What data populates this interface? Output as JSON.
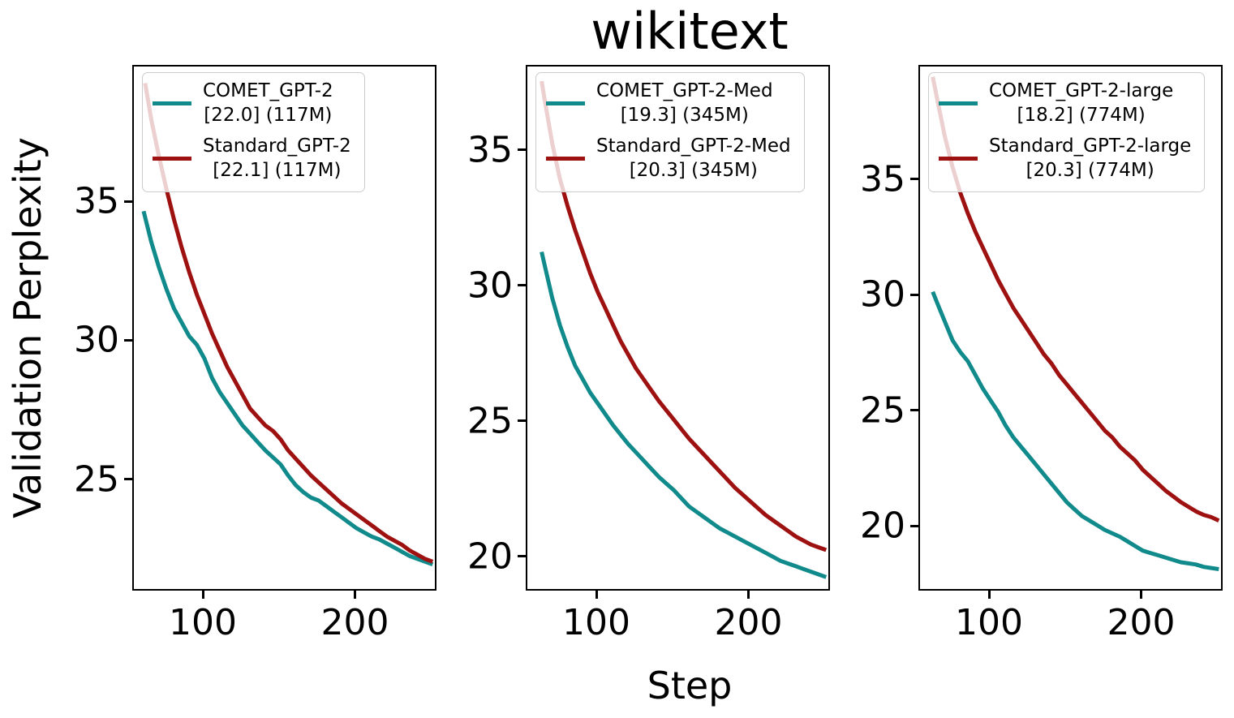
{
  "figure": {
    "title": "wikitext",
    "xlabel": "Step",
    "ylabel": "Validation Perplexity"
  },
  "colors": {
    "comet": "#118a8c",
    "standard": "#9e1111",
    "spine": "#000000",
    "legend_border": "#cccccc"
  },
  "chart_data": [
    {
      "type": "line",
      "title": "",
      "xlabel": "Step",
      "ylabel": "Validation Perplexity",
      "xlim": [
        53.6,
        253.6
      ],
      "ylim": [
        21.0,
        39.9
      ],
      "xticks": [
        100,
        200
      ],
      "yticks": [
        25,
        30,
        35
      ],
      "grid": false,
      "legend_position": "upper-left",
      "series": [
        {
          "name": "COMET_GPT-2",
          "label_lines": [
            "COMET_GPT-2",
            "[22.0] (117M)"
          ],
          "final_perplexity": 22.0,
          "params": "117M",
          "color": "#118a8c",
          "x": [
            60,
            65,
            70,
            75,
            80,
            85,
            90,
            95,
            100,
            105,
            110,
            115,
            120,
            125,
            130,
            135,
            140,
            145,
            150,
            155,
            160,
            165,
            170,
            175,
            180,
            185,
            190,
            195,
            200,
            205,
            210,
            215,
            220,
            225,
            230,
            235,
            240,
            245,
            250
          ],
          "y": [
            34.7,
            33.6,
            32.7,
            31.9,
            31.2,
            30.7,
            30.2,
            29.9,
            29.4,
            28.7,
            28.2,
            27.8,
            27.4,
            27.0,
            26.7,
            26.4,
            26.1,
            25.85,
            25.6,
            25.2,
            24.85,
            24.6,
            24.4,
            24.3,
            24.1,
            23.9,
            23.7,
            23.5,
            23.3,
            23.15,
            23.0,
            22.9,
            22.75,
            22.6,
            22.45,
            22.3,
            22.2,
            22.1,
            22.0
          ]
        },
        {
          "name": "Standard_GPT-2",
          "label_lines": [
            "Standard_GPT-2",
            "[22.1] (117M)"
          ],
          "final_perplexity": 22.1,
          "params": "117M",
          "color": "#9e1111",
          "x": [
            61,
            65,
            70,
            75,
            80,
            85,
            90,
            95,
            100,
            105,
            110,
            115,
            120,
            125,
            130,
            135,
            140,
            145,
            150,
            155,
            160,
            165,
            170,
            175,
            180,
            185,
            190,
            195,
            200,
            205,
            210,
            215,
            220,
            225,
            230,
            235,
            240,
            245,
            250
          ],
          "y": [
            39.3,
            38.0,
            36.7,
            35.5,
            34.4,
            33.4,
            32.5,
            31.7,
            31.0,
            30.3,
            29.7,
            29.1,
            28.6,
            28.1,
            27.6,
            27.3,
            27.0,
            26.8,
            26.5,
            26.1,
            25.8,
            25.5,
            25.2,
            24.95,
            24.7,
            24.45,
            24.2,
            24.0,
            23.8,
            23.6,
            23.4,
            23.2,
            23.0,
            22.85,
            22.7,
            22.5,
            22.35,
            22.2,
            22.1
          ]
        }
      ]
    },
    {
      "type": "line",
      "title": "",
      "xlabel": "Step",
      "ylabel": "",
      "xlim": [
        53.6,
        253.6
      ],
      "ylim": [
        18.74,
        38.14
      ],
      "xticks": [
        100,
        200
      ],
      "yticks": [
        20,
        25,
        30,
        35
      ],
      "grid": false,
      "legend_position": "upper-left",
      "series": [
        {
          "name": "COMET_GPT-2-Med",
          "label_lines": [
            "COMET_GPT-2-Med",
            "[19.3] (345M)"
          ],
          "final_perplexity": 19.3,
          "params": "345M",
          "color": "#118a8c",
          "x": [
            63,
            65,
            70,
            75,
            80,
            85,
            90,
            95,
            100,
            105,
            110,
            115,
            120,
            125,
            130,
            135,
            140,
            145,
            150,
            155,
            160,
            165,
            170,
            175,
            180,
            185,
            190,
            195,
            200,
            205,
            210,
            215,
            220,
            225,
            230,
            235,
            240,
            245,
            250
          ],
          "y": [
            31.3,
            30.8,
            29.6,
            28.6,
            27.8,
            27.1,
            26.6,
            26.1,
            25.7,
            25.3,
            24.9,
            24.55,
            24.2,
            23.9,
            23.6,
            23.3,
            23.0,
            22.75,
            22.5,
            22.2,
            21.9,
            21.7,
            21.5,
            21.3,
            21.1,
            20.95,
            20.8,
            20.65,
            20.5,
            20.35,
            20.2,
            20.05,
            19.9,
            19.8,
            19.7,
            19.6,
            19.5,
            19.4,
            19.3
          ]
        },
        {
          "name": "Standard_GPT-2-Med",
          "label_lines": [
            "Standard_GPT-2-Med",
            "[20.3] (345M)"
          ],
          "final_perplexity": 20.3,
          "params": "345M",
          "color": "#9e1111",
          "x": [
            63,
            65,
            70,
            75,
            80,
            85,
            90,
            95,
            100,
            105,
            110,
            115,
            120,
            125,
            130,
            135,
            140,
            145,
            150,
            155,
            160,
            165,
            170,
            175,
            180,
            185,
            190,
            195,
            200,
            205,
            210,
            215,
            220,
            225,
            230,
            235,
            240,
            245,
            250
          ],
          "y": [
            37.6,
            36.9,
            35.3,
            34.0,
            33.0,
            32.1,
            31.3,
            30.5,
            29.8,
            29.2,
            28.6,
            28.0,
            27.5,
            27.0,
            26.6,
            26.2,
            25.8,
            25.45,
            25.1,
            24.75,
            24.4,
            24.1,
            23.8,
            23.5,
            23.2,
            22.9,
            22.6,
            22.35,
            22.1,
            21.85,
            21.6,
            21.4,
            21.2,
            21.0,
            20.8,
            20.65,
            20.5,
            20.4,
            20.3
          ]
        }
      ]
    },
    {
      "type": "line",
      "title": "",
      "xlabel": "Step",
      "ylabel": "",
      "xlim": [
        53.6,
        253.6
      ],
      "ylim": [
        17.2,
        39.95
      ],
      "xticks": [
        100,
        200
      ],
      "yticks": [
        20,
        25,
        30,
        35
      ],
      "grid": false,
      "legend_position": "upper-left",
      "series": [
        {
          "name": "COMET_GPT-2-large",
          "label_lines": [
            "COMET_GPT-2-large",
            "[18.2] (774M)"
          ],
          "final_perplexity": 18.2,
          "params": "774M",
          "color": "#118a8c",
          "x": [
            62,
            65,
            70,
            75,
            80,
            85,
            90,
            95,
            100,
            105,
            110,
            115,
            120,
            125,
            130,
            135,
            140,
            145,
            150,
            155,
            160,
            165,
            170,
            175,
            180,
            185,
            190,
            195,
            200,
            205,
            210,
            215,
            220,
            225,
            230,
            235,
            240,
            245,
            250
          ],
          "y": [
            30.2,
            29.7,
            28.9,
            28.1,
            27.6,
            27.2,
            26.6,
            26.0,
            25.5,
            25.0,
            24.4,
            23.9,
            23.5,
            23.1,
            22.7,
            22.3,
            21.9,
            21.5,
            21.1,
            20.8,
            20.5,
            20.3,
            20.1,
            19.9,
            19.75,
            19.6,
            19.4,
            19.2,
            19.0,
            18.9,
            18.8,
            18.7,
            18.6,
            18.5,
            18.45,
            18.4,
            18.3,
            18.25,
            18.2
          ]
        },
        {
          "name": "Standard_GPT-2-large",
          "label_lines": [
            "Standard_GPT-2-large",
            "[20.3] (774M)"
          ],
          "final_perplexity": 20.3,
          "params": "774M",
          "color": "#9e1111",
          "x": [
            62,
            65,
            70,
            75,
            80,
            85,
            90,
            95,
            100,
            105,
            110,
            115,
            120,
            125,
            130,
            135,
            140,
            145,
            150,
            155,
            160,
            165,
            170,
            175,
            180,
            185,
            190,
            195,
            200,
            205,
            210,
            215,
            220,
            225,
            230,
            235,
            240,
            245,
            250
          ],
          "y": [
            39.5,
            38.5,
            36.9,
            35.6,
            34.5,
            33.6,
            32.8,
            32.1,
            31.4,
            30.7,
            30.1,
            29.5,
            29.0,
            28.5,
            28.0,
            27.5,
            27.1,
            26.6,
            26.2,
            25.8,
            25.4,
            25.0,
            24.6,
            24.2,
            23.9,
            23.5,
            23.2,
            22.9,
            22.5,
            22.2,
            21.9,
            21.6,
            21.35,
            21.1,
            20.9,
            20.7,
            20.55,
            20.45,
            20.3
          ]
        }
      ]
    }
  ]
}
